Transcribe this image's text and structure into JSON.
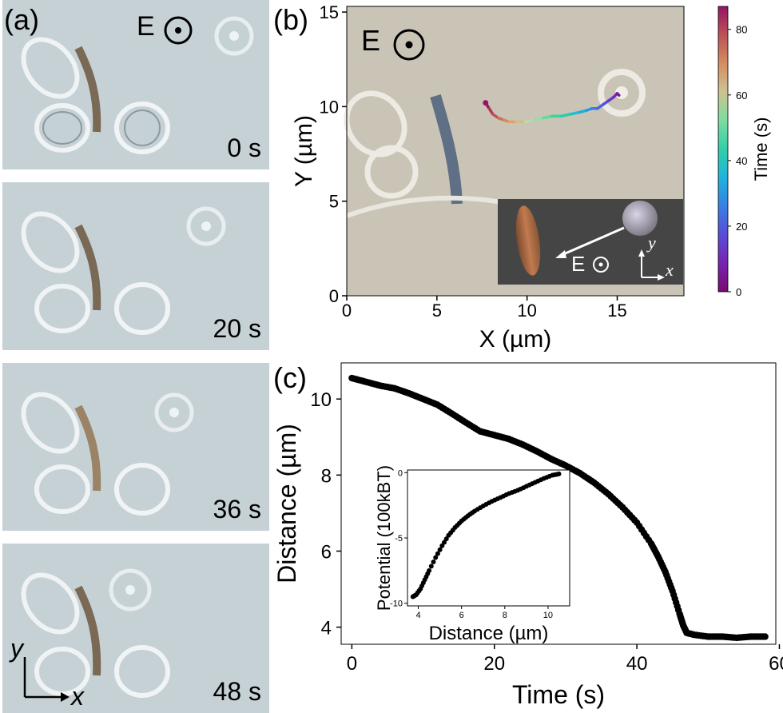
{
  "panel_a": {
    "label": "(a)",
    "field_label": "E",
    "frames": [
      {
        "time": "0 s"
      },
      {
        "time": "20 s"
      },
      {
        "time": "36 s"
      },
      {
        "time": "48 s"
      }
    ],
    "axis_y": "y",
    "axis_x": "x"
  },
  "panel_b": {
    "label": "(b)",
    "field_label": "E",
    "inset_field_label": "E",
    "inset_axis_y": "y",
    "inset_axis_x": "x"
  },
  "panel_c": {
    "label": "(c)"
  },
  "chart_data": [
    {
      "panel": "(b)",
      "type": "line",
      "xlabel": "X (µm)",
      "ylabel": "Y (µm)",
      "xlim": [
        0,
        18.7
      ],
      "ylim": [
        0,
        15.3
      ],
      "xticks": [
        0,
        5,
        10,
        15
      ],
      "yticks": [
        0,
        5,
        10,
        15
      ],
      "colorbar": {
        "label": "Time (s)",
        "range": [
          0,
          87
        ],
        "ticks": [
          0,
          20,
          40,
          60,
          80
        ]
      },
      "series": [
        {
          "x": [
            7.7,
            7.9,
            8.1,
            8.4,
            8.7,
            9.0,
            9.4,
            9.9,
            10.4,
            10.9,
            11.4,
            11.9,
            12.4,
            12.9,
            13.3,
            13.6,
            13.9,
            14.2,
            14.5,
            14.8,
            15.0,
            15.1
          ],
          "y": [
            10.2,
            9.9,
            9.6,
            9.4,
            9.3,
            9.2,
            9.2,
            9.2,
            9.3,
            9.4,
            9.5,
            9.5,
            9.6,
            9.7,
            9.8,
            9.9,
            9.9,
            10.1,
            10.3,
            10.5,
            10.7,
            10.6
          ],
          "time": [
            87,
            82,
            78,
            74,
            70,
            66,
            62,
            58,
            54,
            50,
            46,
            42,
            38,
            34,
            30,
            26,
            22,
            18,
            14,
            10,
            5,
            0
          ]
        }
      ]
    },
    {
      "panel": "(c)",
      "type": "scatter",
      "xlabel": "Time (s)",
      "ylabel": "Distance (µm)",
      "xlim": [
        -1.5,
        59.5
      ],
      "ylim": [
        3.55,
        10.95
      ],
      "xticks": [
        0,
        20,
        40,
        60
      ],
      "yticks": [
        4,
        6,
        8,
        10
      ],
      "series": [
        {
          "t": [
            0,
            2,
            4,
            6,
            8,
            10,
            12,
            14,
            16,
            18,
            20,
            22,
            24,
            26,
            28,
            30,
            32,
            34,
            36,
            38,
            40,
            42,
            43,
            44,
            45,
            46,
            46.5,
            47,
            48,
            50,
            52,
            54,
            56,
            58
          ],
          "d": [
            10.55,
            10.45,
            10.35,
            10.28,
            10.15,
            10.0,
            9.85,
            9.62,
            9.38,
            9.15,
            9.05,
            8.95,
            8.8,
            8.62,
            8.42,
            8.25,
            8.05,
            7.8,
            7.5,
            7.15,
            6.75,
            6.2,
            5.85,
            5.45,
            4.95,
            4.35,
            4.05,
            3.85,
            3.8,
            3.75,
            3.75,
            3.72,
            3.75,
            3.75
          ]
        }
      ]
    },
    {
      "panel": "(c) inset",
      "type": "scatter",
      "xlabel": "Distance (µm)",
      "ylabel": "Potential (100kBT)",
      "xlim": [
        3.5,
        11.0
      ],
      "ylim": [
        -10.2,
        0.2
      ],
      "xticks": [
        4,
        6,
        8,
        10
      ],
      "yticks": [
        0,
        -5,
        -10
      ],
      "series": [
        {
          "x": [
            3.75,
            3.9,
            4.1,
            4.3,
            4.5,
            4.8,
            5.1,
            5.4,
            5.7,
            6.0,
            6.3,
            6.6,
            7.0,
            7.4,
            7.8,
            8.2,
            8.6,
            9.0,
            9.4,
            9.8,
            10.2,
            10.5
          ],
          "y": [
            -9.5,
            -9.35,
            -8.9,
            -8.2,
            -7.5,
            -6.5,
            -5.6,
            -4.8,
            -4.2,
            -3.7,
            -3.3,
            -2.95,
            -2.55,
            -2.2,
            -1.9,
            -1.6,
            -1.35,
            -1.05,
            -0.75,
            -0.45,
            -0.2,
            -0.1
          ]
        }
      ]
    }
  ]
}
